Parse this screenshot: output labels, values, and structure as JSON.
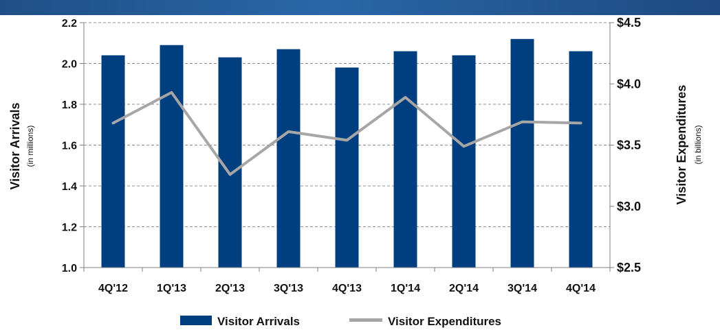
{
  "chart_data": {
    "type": "bar",
    "categories": [
      "4Q'12",
      "1Q'13",
      "2Q'13",
      "3Q'13",
      "4Q'13",
      "1Q'14",
      "2Q'14",
      "3Q'14",
      "4Q'14"
    ],
    "series": [
      {
        "name": "Visitor Arrivals",
        "type": "bar",
        "axis": "left",
        "color": "#003f7f",
        "values": [
          2.04,
          2.09,
          2.03,
          2.07,
          1.98,
          2.06,
          2.04,
          2.12,
          2.06
        ]
      },
      {
        "name": "Visitor Expenditures",
        "type": "line",
        "axis": "right",
        "color": "#a6a6a6",
        "values": [
          3.68,
          3.93,
          3.26,
          3.61,
          3.54,
          3.89,
          3.49,
          3.69,
          3.68
        ]
      }
    ],
    "y_left": {
      "label": "Visitor Arrivals",
      "sublabel": "(in millions)",
      "ylim": [
        1.0,
        2.2
      ],
      "ticks": [
        "1.0",
        "1.2",
        "1.4",
        "1.6",
        "1.8",
        "2.0",
        "2.2"
      ]
    },
    "y_right": {
      "label": "Visitor Expenditures",
      "sublabel": "(in billions)",
      "ylim": [
        2.5,
        4.5
      ],
      "ticks": [
        "$2.5",
        "$3.0",
        "$3.5",
        "$4.0",
        "$4.5"
      ]
    },
    "grid": true,
    "legend_position": "bottom"
  }
}
